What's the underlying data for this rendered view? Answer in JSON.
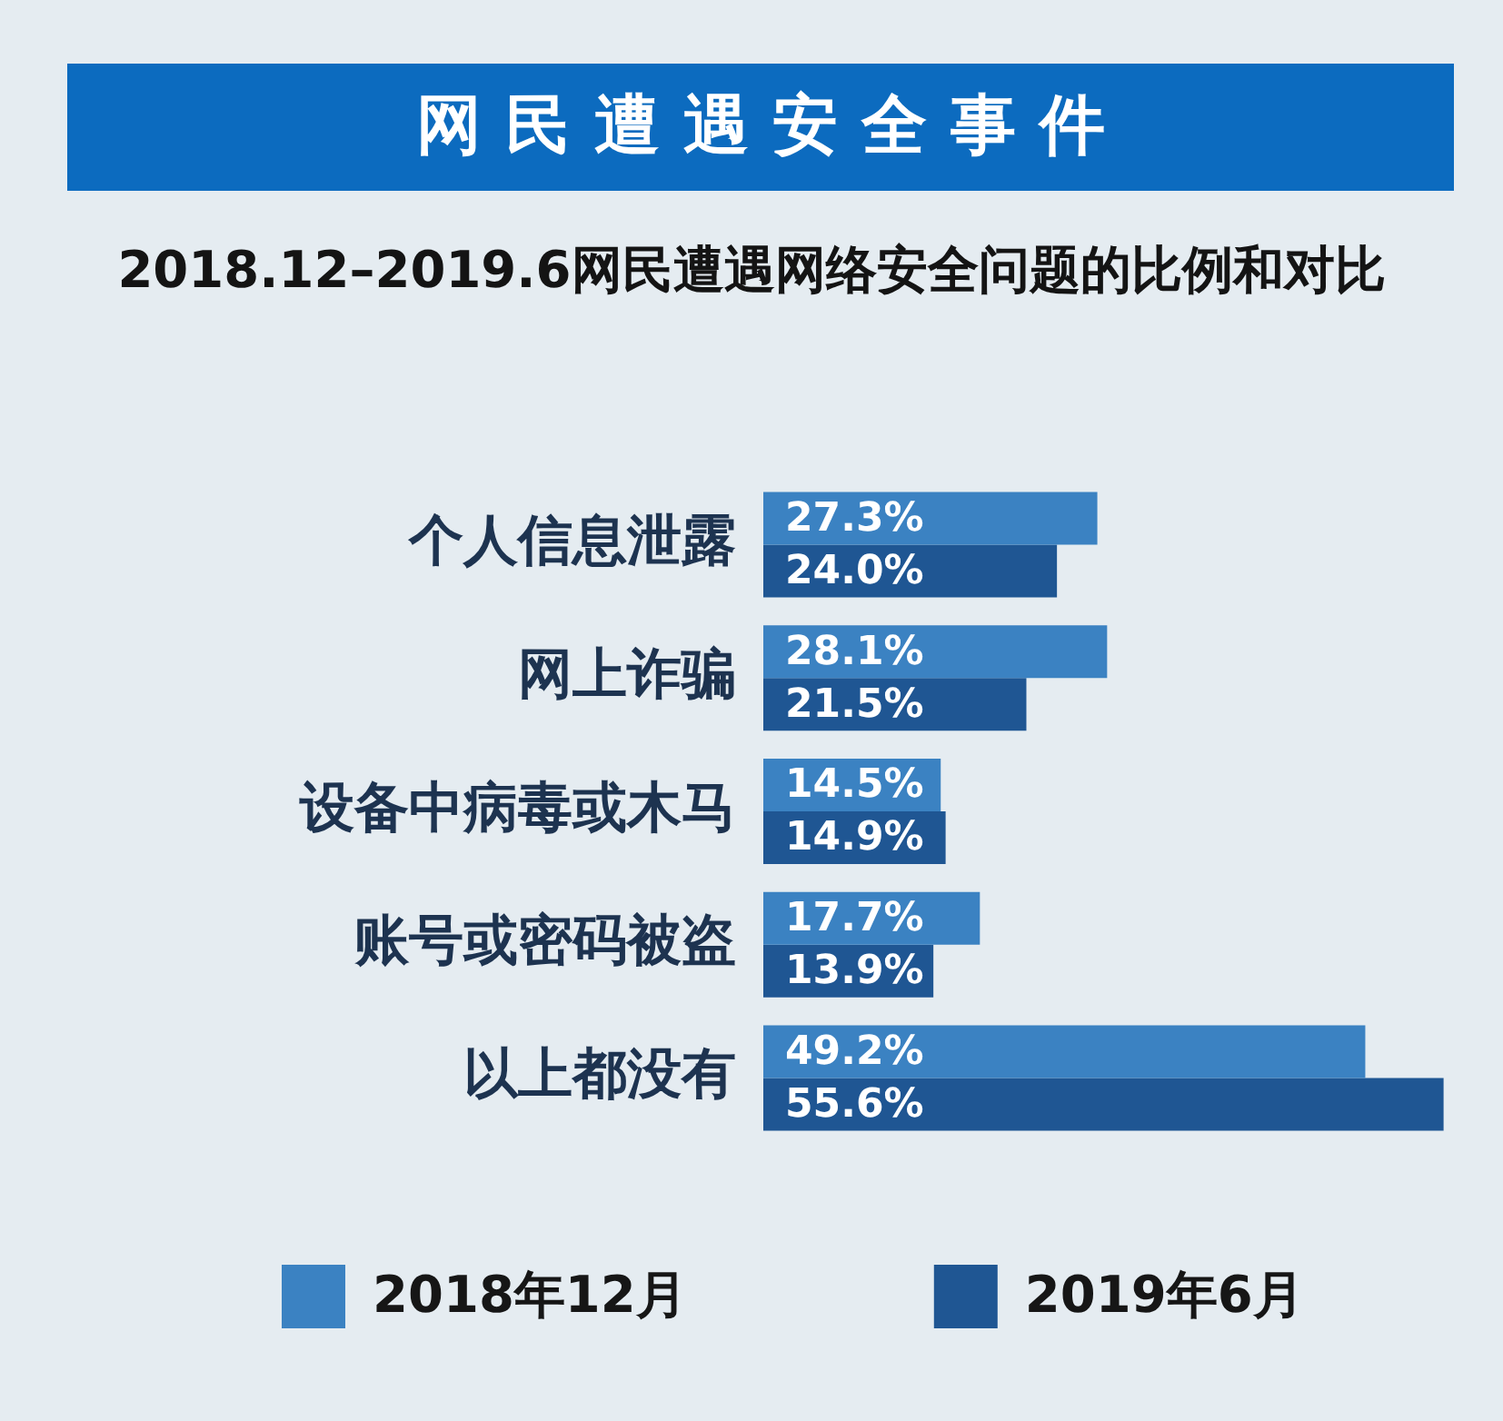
{
  "chart_data": {
    "type": "bar",
    "orientation": "horizontal",
    "title": "网民遭遇安全事件",
    "subtitle": "2018.12–2019.6网民遭遇网络安全问题的比例和对比",
    "categories": [
      "个人信息泄露",
      "网上诈骗",
      "设备中病毒或木马",
      "账号或密码被盗",
      "以上都没有"
    ],
    "series": [
      {
        "name": "2018年12月",
        "color": "#3b82c2",
        "values": [
          27.3,
          28.1,
          14.5,
          17.7,
          49.2
        ],
        "value_labels": [
          "27.3%",
          "28.1%",
          "14.5%",
          "17.7%",
          "49.2%"
        ]
      },
      {
        "name": "2019年6月",
        "color": "#1f5693",
        "values": [
          24.0,
          21.5,
          14.9,
          13.9,
          55.6
        ],
        "value_labels": [
          "24.0%",
          "21.5%",
          "14.9%",
          "13.9%",
          "55.6%"
        ]
      }
    ],
    "xlim": [
      0,
      56
    ],
    "tick_labels": "y",
    "legend": "bottom"
  }
}
